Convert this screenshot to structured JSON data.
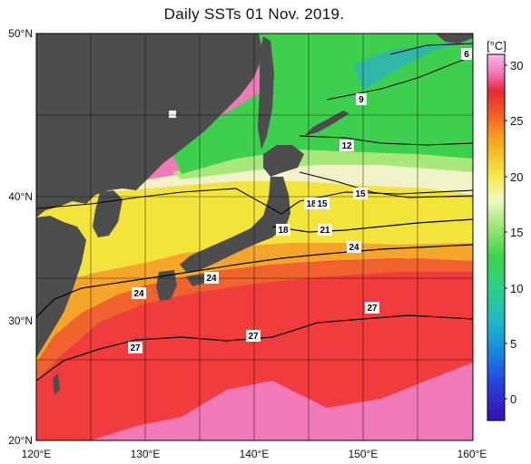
{
  "title": "Daily SSTs 01 Nov. 2019.",
  "lat_labels": [
    "50°N",
    "40°N",
    "30°N",
    "20°N"
  ],
  "lon_labels": [
    "120°E",
    "130°E",
    "140°E",
    "150°E",
    "160°E"
  ],
  "colorbar": {
    "unit": "[°C]",
    "ticks": [
      "30",
      "25",
      "20",
      "15",
      "10",
      "5",
      "0"
    ]
  },
  "contour_labels": [
    "6",
    "9",
    "12",
    "15",
    "18",
    "15",
    "18",
    "21",
    "24",
    "24",
    "24",
    "27",
    "27",
    "27"
  ],
  "colors": {
    "land": "#4d4d4d",
    "warm_pink": "#f07ab8",
    "red": "#f03c3c",
    "orange": "#f5a52a",
    "yellow": "#f2e43a",
    "pale": "#f2f2c8",
    "green": "#3fcf4f",
    "teal": "#2fb8a8"
  }
}
